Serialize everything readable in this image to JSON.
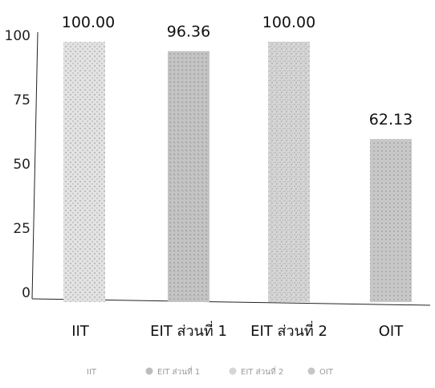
{
  "chart_data": {
    "type": "bar",
    "categories": [
      "IIT",
      "EIT ส่วนที่ 1",
      "EIT ส่วนที่ 2",
      "OIT"
    ],
    "values": [
      100.0,
      96.36,
      100.0,
      62.13
    ],
    "value_labels": [
      "100.00",
      "96.36",
      "100.00",
      "62.13"
    ],
    "ylim": [
      0,
      100
    ],
    "yticks": [
      0,
      25,
      50,
      75,
      100
    ],
    "title": "",
    "xlabel": "",
    "ylabel": "",
    "grid": false,
    "legend_position": "bottom",
    "legend": [
      "IIT",
      "EIT ส่วนที่ 1",
      "EIT ส่วนที่ 2",
      "OIT"
    ],
    "colors": [
      "#dcdcdc",
      "#bdbdbd",
      "#cfcfcf",
      "#c2c2c2"
    ]
  }
}
